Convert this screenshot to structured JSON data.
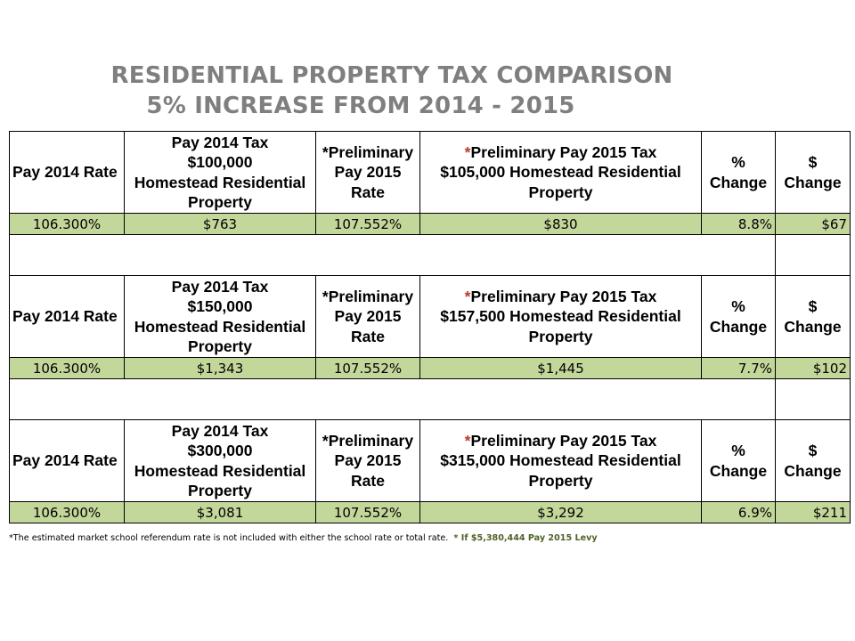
{
  "title": {
    "line1": "RESIDENTIAL PROPERTY TAX COMPARISON",
    "line2": "5% INCREASE FROM 2014 - 2015"
  },
  "tables": [
    {
      "header": {
        "rate_2014": "Pay 2014 Rate",
        "tax_2014": [
          "Pay 2014 Tax",
          "$100,000",
          "Homestead Residential",
          "Property"
        ],
        "prelim_rate_2015": [
          "*Preliminary",
          "Pay 2015",
          "Rate"
        ],
        "prelim_tax_2015_star": "*",
        "prelim_tax_2015": [
          "Preliminary Pay 2015 Tax",
          "$105,000 Homestead Residential",
          "Property"
        ],
        "pct_change": [
          "%",
          "Change"
        ],
        "dollar_change": [
          "$",
          "Change"
        ]
      },
      "values": {
        "rate_2014": "106.300%",
        "tax_2014": "$763",
        "prelim_rate_2015": "107.552%",
        "prelim_tax_2015": "$830",
        "pct_change": "8.8%",
        "dollar_change": "$67"
      }
    },
    {
      "header": {
        "rate_2014": "Pay 2014 Rate",
        "tax_2014": [
          "Pay 2014 Tax",
          "$150,000",
          "Homestead Residential",
          "Property"
        ],
        "prelim_rate_2015": [
          "*Preliminary",
          "Pay 2015",
          "Rate"
        ],
        "prelim_tax_2015_star": "*",
        "prelim_tax_2015": [
          "Preliminary Pay 2015 Tax",
          "$157,500 Homestead Residential",
          "Property"
        ],
        "pct_change": [
          "%",
          "Change"
        ],
        "dollar_change": [
          "$",
          "Change"
        ]
      },
      "values": {
        "rate_2014": "106.300%",
        "tax_2014": "$1,343",
        "prelim_rate_2015": "107.552%",
        "prelim_tax_2015": "$1,445",
        "pct_change": "7.7%",
        "dollar_change": "$102"
      }
    },
    {
      "header": {
        "rate_2014": "Pay 2014 Rate",
        "tax_2014": [
          "Pay 2014 Tax",
          "$300,000",
          "Homestead Residential",
          "Property"
        ],
        "prelim_rate_2015": [
          "*Preliminary",
          "Pay 2015",
          "Rate"
        ],
        "prelim_tax_2015_star": "*",
        "prelim_tax_2015": [
          "Preliminary Pay 2015 Tax",
          "$315,000 Homestead Residential",
          "Property"
        ],
        "pct_change": [
          "%",
          "Change"
        ],
        "dollar_change": [
          "$",
          "Change"
        ]
      },
      "values": {
        "rate_2014": "106.300%",
        "tax_2014": "$3,081",
        "prelim_rate_2015": "107.552%",
        "prelim_tax_2015": "$3,292",
        "pct_change": "6.9%",
        "dollar_change": "$211"
      }
    }
  ],
  "footnote": {
    "text": "*The estimated market school referendum rate is not included with either the school rate or total rate.",
    "levy_note": "* If $5,380,444 Pay 2015 Levy"
  },
  "colors": {
    "title": "#7f7f7f",
    "value_row": "#c4d79b",
    "asterisk": "#c0392b",
    "levy_note": "#4f6228"
  }
}
